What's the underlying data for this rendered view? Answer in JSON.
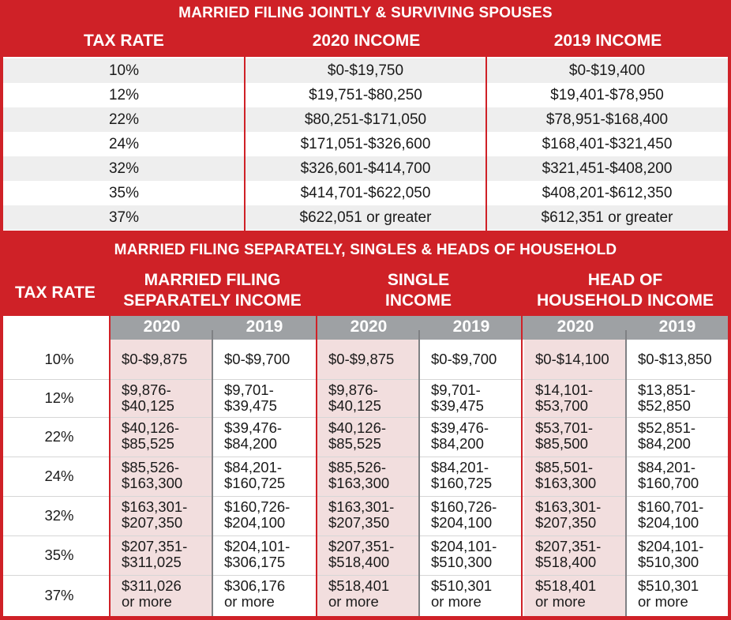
{
  "section1": {
    "title": "MARRIED FILING JOINTLY & SURVIVING SPOUSES",
    "headers": [
      "TAX RATE",
      "2020 INCOME",
      "2019 INCOME"
    ],
    "rows": [
      [
        "10%",
        "$0-$19,750",
        "$0-$19,400"
      ],
      [
        "12%",
        "$19,751-$80,250",
        "$19,401-$78,950"
      ],
      [
        "22%",
        "$80,251-$171,050",
        "$78,951-$168,400"
      ],
      [
        "24%",
        "$171,051-$326,600",
        "$168,401-$321,450"
      ],
      [
        "32%",
        "$326,601-$414,700",
        "$321,451-$408,200"
      ],
      [
        "35%",
        "$414,701-$622,050",
        "$408,201-$612,350"
      ],
      [
        "37%",
        "$622,051 or greater",
        "$612,351 or greater"
      ]
    ]
  },
  "section2": {
    "title": "MARRIED FILING SEPARATELY, SINGLES & HEADS OF HOUSEHOLD",
    "rate_header": "TAX RATE",
    "groups": [
      {
        "line1": "MARRIED FILING",
        "line2": "SEPARATELY INCOME"
      },
      {
        "line1": "SINGLE",
        "line2": "INCOME"
      },
      {
        "line1": "HEAD OF",
        "line2": "HOUSEHOLD INCOME"
      }
    ],
    "years": [
      "2020",
      "2019",
      "2020",
      "2019",
      "2020",
      "2019"
    ],
    "rows": [
      {
        "rate": "10%",
        "cells": [
          "$0-$9,875",
          "$0-$9,700",
          "$0-$9,875",
          "$0-$9,700",
          "$0-$14,100",
          "$0-$13,850"
        ]
      },
      {
        "rate": "12%",
        "cells": [
          "$9,876-\n$40,125",
          "$9,701-\n$39,475",
          "$9,876-\n$40,125",
          "$9,701-\n$39,475",
          "$14,101-\n$53,700",
          "$13,851-\n$52,850"
        ]
      },
      {
        "rate": "22%",
        "cells": [
          "$40,126-\n$85,525",
          "$39,476-\n$84,200",
          "$40,126-\n$85,525",
          "$39,476-\n$84,200",
          "$53,701-\n$85,500",
          "$52,851-\n$84,200"
        ]
      },
      {
        "rate": "24%",
        "cells": [
          "$85,526-\n$163,300",
          "$84,201-\n$160,725",
          "$85,526-\n$163,300",
          "$84,201-\n$160,725",
          "$85,501-\n$163,300",
          "$84,201-\n$160,700"
        ]
      },
      {
        "rate": "32%",
        "cells": [
          "$163,301-\n$207,350",
          "$160,726-\n$204,100",
          "$163,301-\n$207,350",
          "$160,726-\n$204,100",
          "$163,301-\n$207,350",
          "$160,701-\n$204,100"
        ]
      },
      {
        "rate": "35%",
        "cells": [
          "$207,351-\n$311,025",
          "$204,101-\n$306,175",
          "$207,351-\n$518,400",
          "$204,101-\n$510,300",
          "$207,351-\n$518,400",
          "$204,101-\n$510,300"
        ]
      },
      {
        "rate": "37%",
        "cells": [
          "$311,026\nor more",
          "$306,176\nor more",
          "$518,401\nor more",
          "$510,301\nor more",
          "$518,401\nor more",
          "$510,301\nor more"
        ]
      }
    ]
  }
}
